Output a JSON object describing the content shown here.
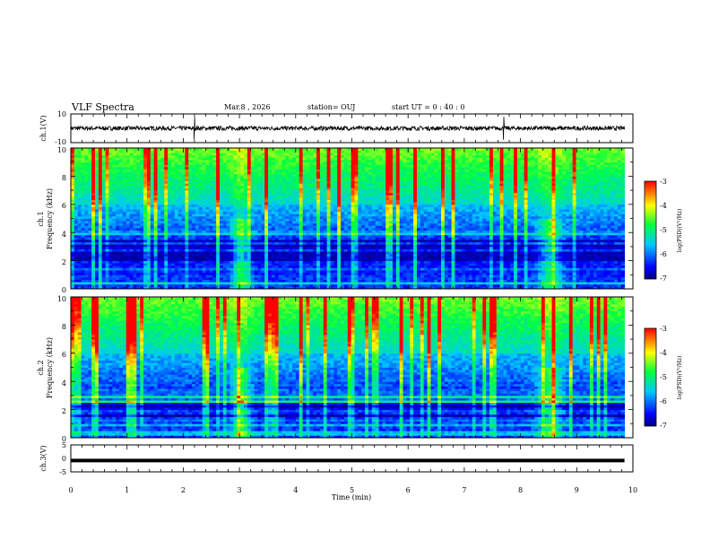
{
  "header": {
    "title": "VLF Spectra",
    "date": "Mar.8  , 2026",
    "station": "station= OUJ",
    "start": "start  UT  =   0  : 40 : 0"
  },
  "chart_data": {
    "type": "heatmap",
    "title": "VLF Spectra",
    "x_axis": {
      "label": "Time  (min)",
      "range": [
        0,
        10
      ],
      "ticks": [
        0,
        1,
        2,
        3,
        4,
        5,
        6,
        7,
        8,
        9,
        10
      ]
    },
    "panels": [
      {
        "name": "ch.1 waveform",
        "type": "line",
        "ylabel": "ch.1(V)",
        "ylim": [
          -10,
          10
        ],
        "tick_labels": [
          "10",
          "-10"
        ],
        "mean_value": 0,
        "noise_amplitude": 1.5,
        "spikes_at_min": [
          2.2,
          7.7
        ],
        "data_extent_min": [
          0,
          9.85
        ]
      },
      {
        "name": "ch.1 spectrogram",
        "type": "heatmap",
        "ylabel_top": "ch.1",
        "ylabel": "Frequency  (kHz)",
        "ylim": [
          0,
          10
        ],
        "tick_labels": [
          "0",
          "2",
          "4",
          "6",
          "8",
          "10"
        ],
        "colorbar": {
          "label": "log(PSD)(V²/Hz)",
          "range": [
            -7,
            -3
          ],
          "tick_labels": [
            "-3",
            "-4",
            "-5",
            "-6",
            "-7"
          ]
        },
        "features": [
          "broadband impulsive sferics above 6 kHz",
          "low-PSD band 2–3.5 kHz",
          "narrowband transmitter lines",
          "enhancements near 3.0 and 8.5 min"
        ]
      },
      {
        "name": "ch.2 spectrogram",
        "type": "heatmap",
        "ylabel_top": "ch.2",
        "ylabel": "Frequency  (kHz)",
        "ylim": [
          0,
          10
        ],
        "tick_labels": [
          "0",
          "2",
          "4",
          "6",
          "8",
          "10"
        ],
        "colorbar": {
          "label": "log(PSD)(V²/Hz)",
          "range": [
            -7,
            -3
          ],
          "tick_labels": [
            "-3",
            "-4",
            "-5",
            "-6",
            "-7"
          ]
        },
        "features": [
          "broadband impulsive sferics",
          "low-PSD band 1.5–2.5 kHz",
          "enhancements near 3.0 and 8.5 min"
        ]
      },
      {
        "name": "ch.3 waveform",
        "type": "line",
        "ylabel": "ch.3(V)",
        "ylim": [
          -5,
          5
        ],
        "tick_labels": [
          "5",
          "0",
          "-5"
        ],
        "mean_value": -0.8,
        "data_extent_min": [
          0,
          9.85
        ]
      }
    ]
  },
  "colors": {
    "colormap": [
      "#000080",
      "#0000ff",
      "#00c8ff",
      "#00ff40",
      "#ffff00",
      "#ff0000"
    ]
  }
}
